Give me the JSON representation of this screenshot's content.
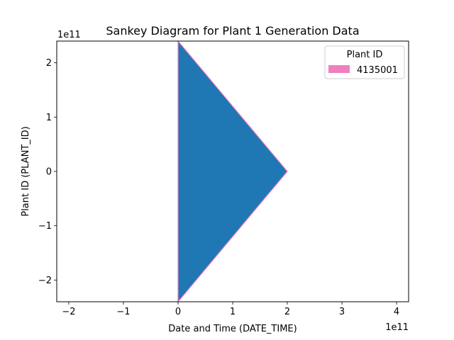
{
  "chart_data": {
    "type": "area",
    "title": "Sankey Diagram for Plant 1 Generation Data",
    "xlabel": "Date and Time (DATE_TIME)",
    "ylabel": "Plant ID (PLANT_ID)",
    "x_offset_text": "1e11",
    "y_offset_text": "1e11",
    "xlim": [
      -2.22,
      4.22
    ],
    "ylim": [
      -2.4,
      2.4
    ],
    "x_ticks": [
      -2,
      -1,
      0,
      1,
      2,
      3,
      4
    ],
    "x_tick_labels": [
      "−2",
      "−1",
      "0",
      "1",
      "2",
      "3",
      "4"
    ],
    "y_ticks": [
      -2,
      -1,
      0,
      1,
      2
    ],
    "y_tick_labels": [
      "−2",
      "−1",
      "0",
      "1",
      "2"
    ],
    "grid": false,
    "legend": {
      "title": "Plant ID",
      "placement": "top-right",
      "entries": [
        {
          "label": "4135001",
          "color": "#f07fc0"
        }
      ]
    },
    "series": [
      {
        "name": "4135001",
        "fill_color": "#1f77b4",
        "edge_color": "#f07fc0",
        "points": [
          [
            0,
            2.4
          ],
          [
            2,
            0
          ],
          [
            0,
            -2.4
          ]
        ]
      }
    ]
  }
}
